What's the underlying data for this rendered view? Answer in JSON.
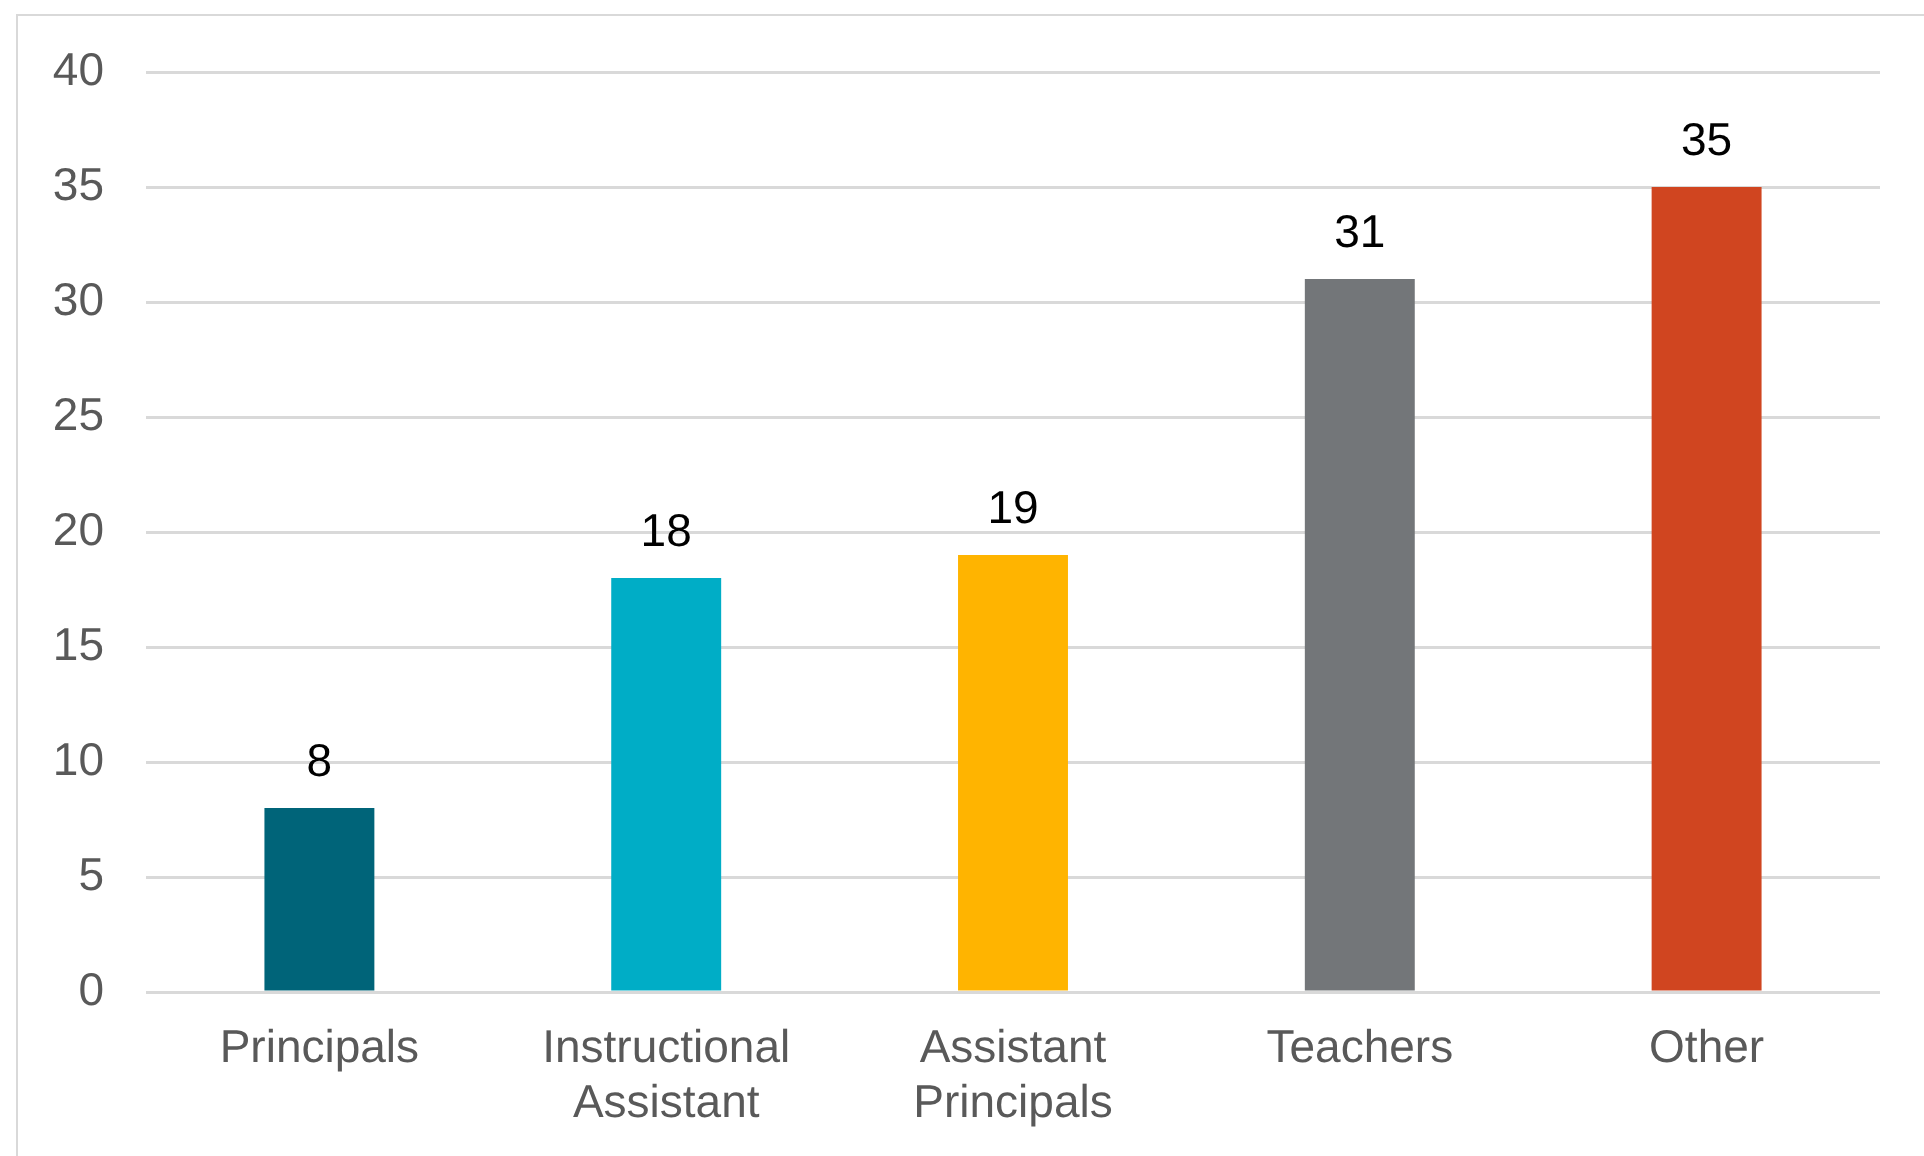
{
  "chart_data": {
    "type": "bar",
    "categories": [
      "Principals",
      "Instructional Assistant",
      "Assistant Principals",
      "Teachers",
      "Other"
    ],
    "values": [
      8,
      18,
      19,
      31,
      35
    ],
    "colors": [
      "#006479",
      "#00adc6",
      "#ffb400",
      "#737679",
      "#d04520"
    ],
    "ylim": [
      0,
      40
    ],
    "yticks": [
      0,
      5,
      10,
      15,
      20,
      25,
      30,
      35,
      40
    ],
    "grid": "y",
    "data_labels": true
  }
}
